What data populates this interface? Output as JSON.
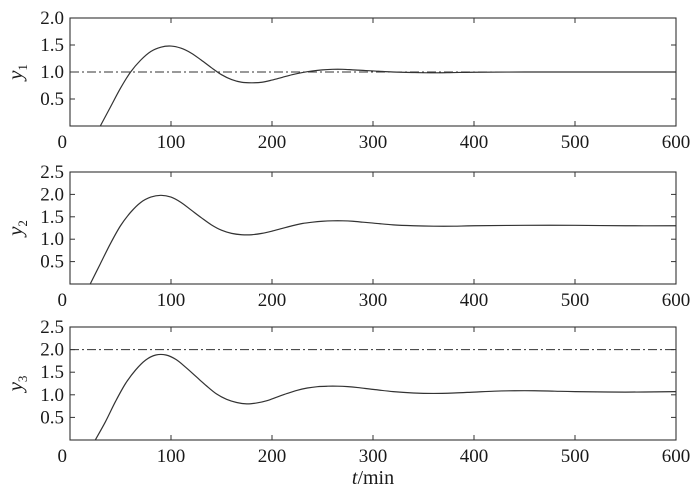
{
  "chart_data": [
    {
      "type": "line",
      "ylabel": "y",
      "ylabel_sub": "1",
      "xlabel": "",
      "xlim": [
        0,
        600
      ],
      "ylim": [
        0,
        2.0
      ],
      "xticks": [
        "0",
        "100",
        "200",
        "300",
        "400",
        "500",
        "600"
      ],
      "yticks": [
        "0.5",
        "1.0",
        "1.5",
        "2.0"
      ],
      "grid": false,
      "reference_line": {
        "y": 1.0,
        "style": "dash-dot"
      },
      "series": [
        {
          "x": [
            30,
            40,
            50,
            60,
            70,
            80,
            90,
            100,
            110,
            120,
            130,
            140,
            150,
            160,
            170,
            180,
            190,
            200,
            210,
            220,
            230,
            240,
            250,
            260,
            270,
            280,
            290,
            300,
            320,
            340,
            360,
            380,
            400,
            450,
            500,
            550,
            600
          ],
          "y": [
            0.0,
            0.35,
            0.7,
            1.0,
            1.22,
            1.38,
            1.46,
            1.48,
            1.44,
            1.35,
            1.22,
            1.08,
            0.95,
            0.86,
            0.81,
            0.8,
            0.81,
            0.85,
            0.9,
            0.95,
            0.99,
            1.02,
            1.04,
            1.05,
            1.05,
            1.04,
            1.03,
            1.02,
            1.0,
            0.99,
            0.985,
            0.99,
            0.995,
            1.0,
            1.0,
            1.0,
            1.0
          ]
        }
      ]
    },
    {
      "type": "line",
      "ylabel": "y",
      "ylabel_sub": "2",
      "xlabel": "",
      "xlim": [
        0,
        600
      ],
      "ylim": [
        0,
        2.5
      ],
      "xticks": [
        "0",
        "100",
        "200",
        "300",
        "400",
        "500",
        "600"
      ],
      "yticks": [
        "0.5",
        "1.0",
        "1.5",
        "2.0",
        "2.5"
      ],
      "grid": false,
      "series": [
        {
          "x": [
            20,
            30,
            40,
            50,
            60,
            70,
            80,
            90,
            100,
            110,
            120,
            130,
            140,
            150,
            160,
            170,
            180,
            190,
            200,
            210,
            220,
            230,
            240,
            250,
            260,
            270,
            280,
            290,
            300,
            320,
            340,
            360,
            380,
            400,
            450,
            500,
            550,
            600
          ],
          "y": [
            0.0,
            0.45,
            0.9,
            1.3,
            1.6,
            1.82,
            1.94,
            1.98,
            1.94,
            1.82,
            1.65,
            1.48,
            1.32,
            1.2,
            1.13,
            1.1,
            1.1,
            1.13,
            1.18,
            1.24,
            1.3,
            1.35,
            1.38,
            1.4,
            1.41,
            1.41,
            1.4,
            1.38,
            1.36,
            1.32,
            1.3,
            1.29,
            1.29,
            1.3,
            1.31,
            1.31,
            1.3,
            1.3
          ]
        }
      ]
    },
    {
      "type": "line",
      "ylabel": "y",
      "ylabel_sub": "3",
      "xlabel": "t/min",
      "xlim": [
        0,
        600
      ],
      "ylim": [
        0,
        2.5
      ],
      "xticks": [
        "0",
        "100",
        "200",
        "300",
        "400",
        "500",
        "600"
      ],
      "yticks": [
        "0.5",
        "1.0",
        "1.5",
        "2.0",
        "2.5"
      ],
      "grid": false,
      "reference_line": {
        "y": 2.0,
        "style": "dash-dot"
      },
      "series": [
        {
          "x": [
            25,
            35,
            45,
            55,
            65,
            75,
            85,
            95,
            105,
            115,
            125,
            135,
            145,
            155,
            165,
            175,
            185,
            195,
            205,
            215,
            225,
            235,
            245,
            255,
            265,
            275,
            285,
            300,
            320,
            340,
            360,
            380,
            400,
            420,
            440,
            460,
            480,
            500,
            550,
            600
          ],
          "y": [
            0.0,
            0.4,
            0.85,
            1.25,
            1.55,
            1.77,
            1.88,
            1.88,
            1.78,
            1.6,
            1.4,
            1.2,
            1.02,
            0.9,
            0.83,
            0.8,
            0.82,
            0.87,
            0.95,
            1.03,
            1.1,
            1.15,
            1.18,
            1.19,
            1.19,
            1.18,
            1.16,
            1.12,
            1.07,
            1.04,
            1.03,
            1.04,
            1.06,
            1.08,
            1.09,
            1.09,
            1.08,
            1.07,
            1.06,
            1.07
          ]
        }
      ]
    }
  ]
}
